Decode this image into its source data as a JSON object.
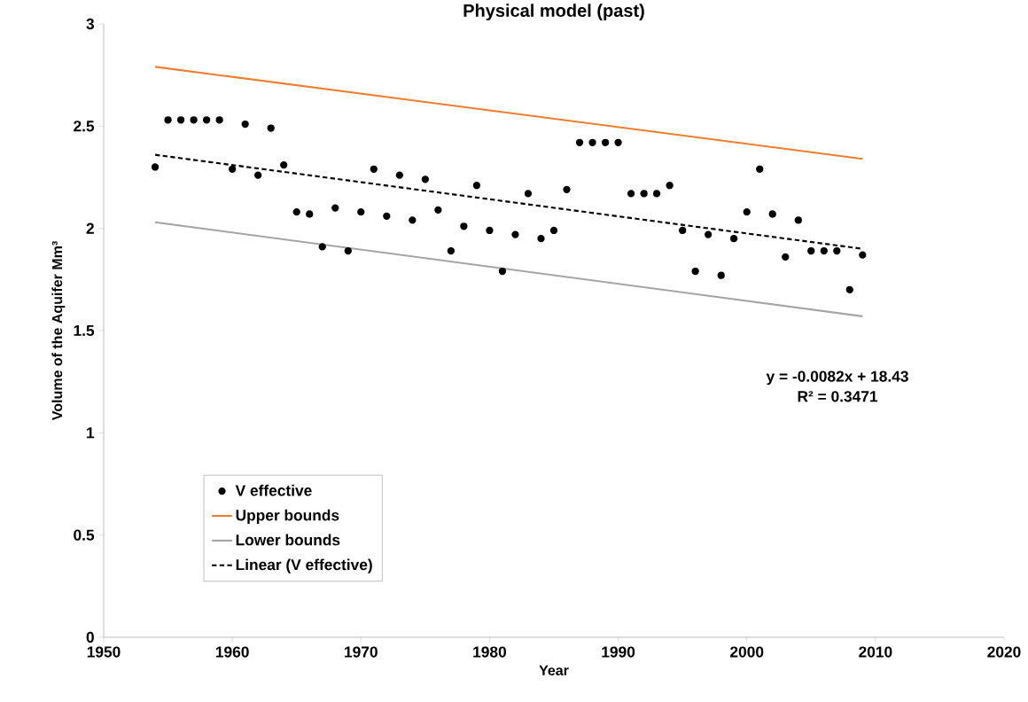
{
  "chart_data": {
    "type": "scatter",
    "title": "Physical model (past)",
    "xlabel": "Year",
    "ylabel": "Volume of the Aquifer Mm³",
    "xlim": [
      1950,
      2020
    ],
    "xticks": [
      1950,
      1960,
      1970,
      1980,
      1990,
      2000,
      2010,
      2020
    ],
    "ylim": [
      0,
      3
    ],
    "yticks": [
      0,
      0.5,
      1,
      1.5,
      2,
      2.5,
      3
    ],
    "grid": false,
    "legend": "bottom left",
    "annotations": [
      "y = -0.0082x + 18.43",
      "R² = 0.3471"
    ],
    "series": [
      {
        "name": "V effective",
        "marker": "circle",
        "color": "#000000",
        "x": [
          1954,
          1955,
          1956,
          1957,
          1958,
          1959,
          1960,
          1961,
          1962,
          1963,
          1964,
          1965,
          1966,
          1967,
          1968,
          1969,
          1970,
          1971,
          1972,
          1973,
          1974,
          1975,
          1976,
          1977,
          1978,
          1979,
          1980,
          1981,
          1982,
          1983,
          1984,
          1985,
          1986,
          1987,
          1988,
          1989,
          1990,
          1991,
          1992,
          1993,
          1994,
          1995,
          1996,
          1997,
          1998,
          1999,
          2000,
          2001,
          2002,
          2003,
          2004,
          2005,
          2006,
          2007,
          2008,
          2009
        ],
        "values": [
          2.3,
          2.53,
          2.53,
          2.53,
          2.53,
          2.53,
          2.29,
          2.51,
          2.26,
          2.49,
          2.31,
          2.08,
          2.07,
          1.91,
          2.1,
          1.89,
          2.08,
          2.29,
          2.06,
          2.26,
          2.04,
          2.24,
          2.09,
          1.89,
          2.01,
          2.21,
          1.99,
          1.79,
          1.97,
          2.17,
          1.95,
          1.99,
          2.19,
          2.42,
          2.42,
          2.42,
          2.42,
          2.17,
          2.17,
          2.17,
          2.21,
          1.99,
          1.79,
          1.97,
          1.77,
          1.95,
          2.08,
          2.29,
          2.07,
          1.86,
          2.04,
          1.89,
          1.89,
          1.89,
          1.7,
          1.87
        ]
      },
      {
        "name": "Upper bounds",
        "type": "line",
        "marker": "none",
        "line_style": "solid",
        "color": "#ed7d31",
        "x": [
          1954,
          2009
        ],
        "values": [
          2.79,
          2.34
        ]
      },
      {
        "name": "Lower bounds",
        "type": "line",
        "marker": "none",
        "line_style": "solid",
        "color": "#a5a5a5",
        "x": [
          1954,
          2009
        ],
        "values": [
          2.03,
          1.57
        ]
      },
      {
        "name": "Linear (V effective)",
        "type": "line",
        "marker": "none",
        "line_style": "dashed",
        "color": "#000000",
        "x": [
          1954,
          2009
        ],
        "values": [
          2.36,
          1.9
        ]
      }
    ]
  }
}
